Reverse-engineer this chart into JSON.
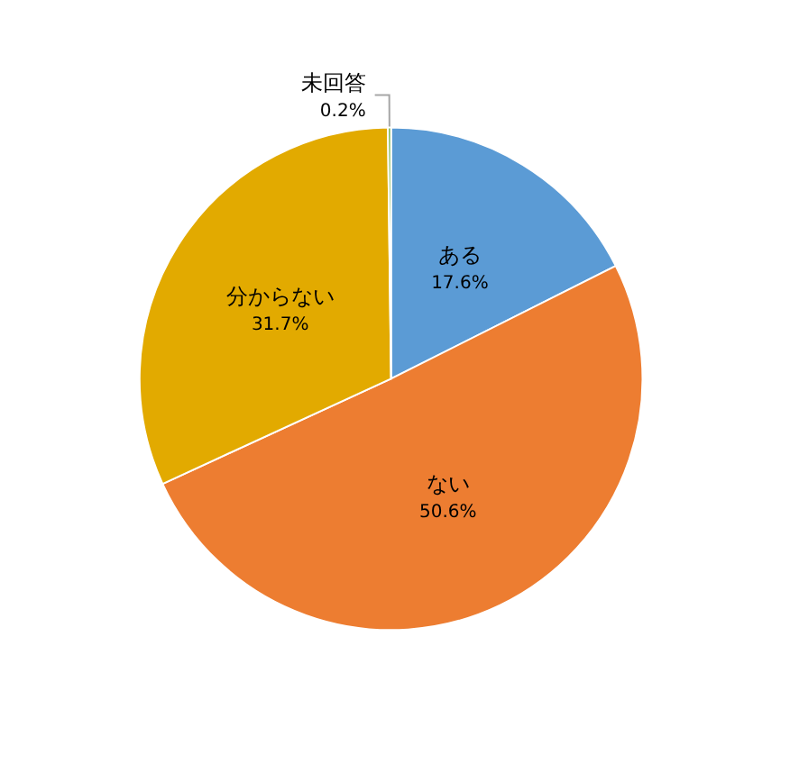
{
  "chart_data": {
    "type": "pie",
    "categories": [
      "ある",
      "ない",
      "分からない",
      "未回答"
    ],
    "values": [
      17.6,
      50.6,
      31.7,
      0.2
    ],
    "value_labels": [
      "17.6%",
      "50.6%",
      "31.7%",
      "0.2%"
    ],
    "colors": [
      "#5b9bd5",
      "#ed7d31",
      "#e2aa00",
      "#70ad47"
    ],
    "legend": false
  }
}
